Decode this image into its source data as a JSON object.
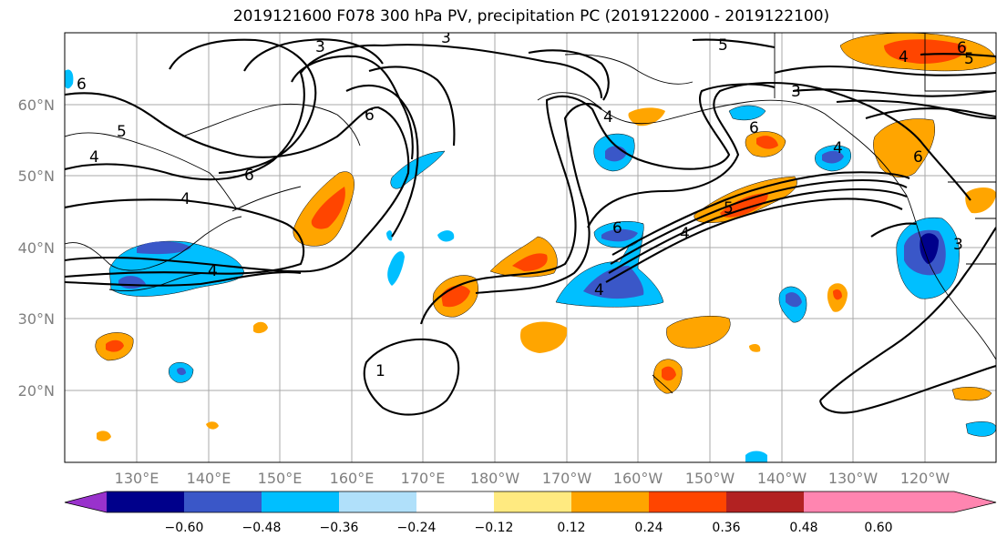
{
  "title": "2019121600 F078 300 hPa PV, precipitation PC (2019122000 - 2019122100)",
  "map": {
    "lat_labels": [
      {
        "text": "60°N",
        "lat": 60
      },
      {
        "text": "50°N",
        "lat": 50
      },
      {
        "text": "40°N",
        "lat": 40
      },
      {
        "text": "30°N",
        "lat": 30
      },
      {
        "text": "20°N",
        "lat": 20
      }
    ],
    "lon_labels": [
      "130°E",
      "140°E",
      "150°E",
      "160°E",
      "170°E",
      "180°W",
      "170°W",
      "160°W",
      "150°W",
      "140°W",
      "130°W",
      "120°W"
    ],
    "pv_labels": [
      "3",
      "3",
      "5",
      "6",
      "6",
      "5",
      "4",
      "6",
      "4",
      "4",
      "6",
      "3",
      "4",
      "6",
      "5",
      "4",
      "4",
      "4",
      "1",
      "6",
      "5",
      "4",
      "6",
      "3"
    ]
  },
  "colorbar": {
    "ticks": [
      "−0.60",
      "−0.48",
      "−0.36",
      "−0.24",
      "−0.12",
      "0.12",
      "0.24",
      "0.36",
      "0.48",
      "0.60"
    ],
    "colors": [
      "#9932cc",
      "#00008b",
      "#3a57c8",
      "#00bfff",
      "#b0e0fa",
      "#ffffff",
      "#ffea80",
      "#ffa500",
      "#ff4500",
      "#b22222",
      "#ff85b0"
    ]
  },
  "colors": {
    "neg_strong": "#3a57c8",
    "neg_darkest": "#00008b",
    "neg_mid": "#00bfff",
    "neg_light": "#b0e0fa",
    "pos_light": "#ffea80",
    "pos_mid": "#ffa500",
    "pos_strong": "#ff4500"
  }
}
